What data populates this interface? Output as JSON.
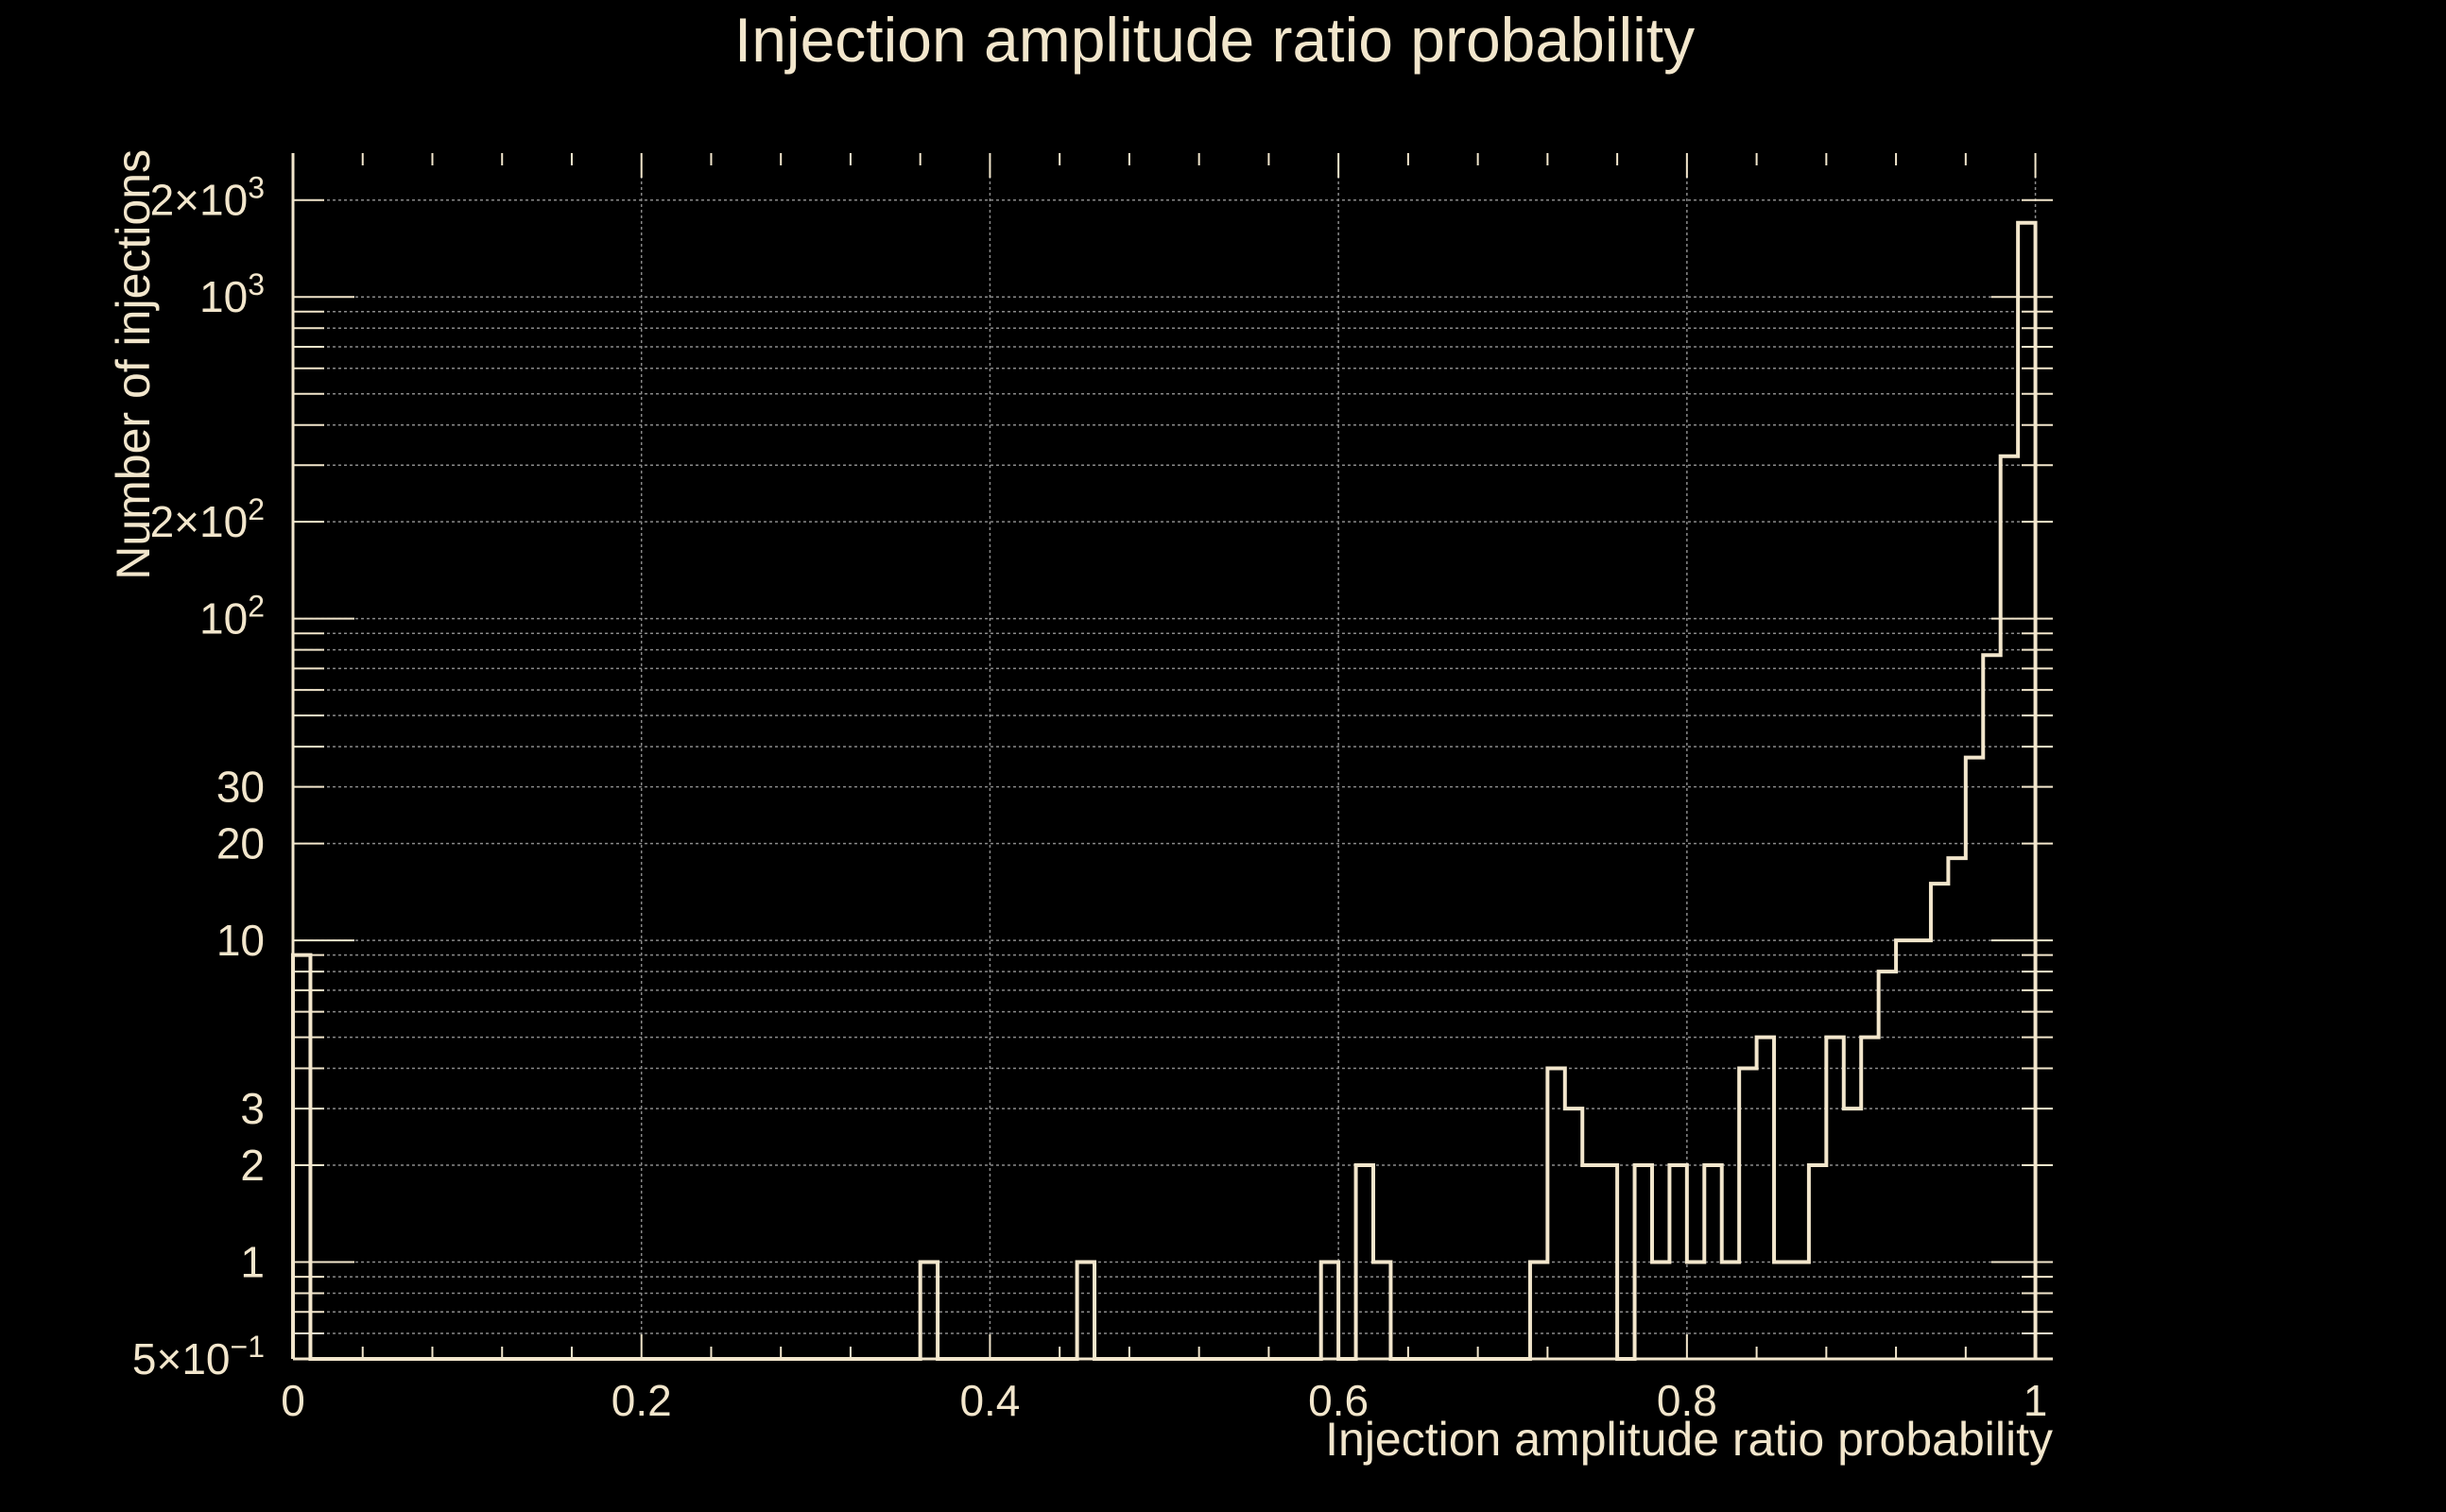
{
  "chart_data": {
    "type": "histogram",
    "title": "Injection amplitude ratio probability",
    "xlabel": "Injection amplitude ratio probability",
    "ylabel": "Number of injections",
    "xlim": [
      0,
      1.01
    ],
    "ylim": [
      0.5,
      2800
    ],
    "yscale": "log",
    "grid": true,
    "colors": {
      "background": "#000000",
      "foreground": "#f2e6cc",
      "grid": "#8a8a8a"
    },
    "x_ticks": [
      {
        "value": 0,
        "label": "0"
      },
      {
        "value": 0.2,
        "label": "0.2"
      },
      {
        "value": 0.4,
        "label": "0.4"
      },
      {
        "value": 0.6,
        "label": "0.6"
      },
      {
        "value": 0.8,
        "label": "0.8"
      },
      {
        "value": 1,
        "label": "1"
      }
    ],
    "y_ticks": [
      {
        "value": 0.5,
        "base": "5×10",
        "exp": "−1"
      },
      {
        "value": 1,
        "base": "1",
        "exp": ""
      },
      {
        "value": 2,
        "base": "2",
        "exp": ""
      },
      {
        "value": 3,
        "base": "3",
        "exp": ""
      },
      {
        "value": 10,
        "base": "10",
        "exp": ""
      },
      {
        "value": 20,
        "base": "20",
        "exp": ""
      },
      {
        "value": 30,
        "base": "30",
        "exp": ""
      },
      {
        "value": 100,
        "base": "10",
        "exp": "2"
      },
      {
        "value": 200,
        "base": "2×10",
        "exp": "2"
      },
      {
        "value": 1000,
        "base": "10",
        "exp": "3"
      },
      {
        "value": 2000,
        "base": "2×10",
        "exp": "3"
      }
    ],
    "bin_width": 0.01,
    "bins_nonzero": [
      [
        0.0,
        9
      ],
      [
        0.36,
        1
      ],
      [
        0.45,
        1
      ],
      [
        0.59,
        1
      ],
      [
        0.61,
        2
      ],
      [
        0.62,
        1
      ],
      [
        0.71,
        1
      ],
      [
        0.72,
        4
      ],
      [
        0.73,
        3
      ],
      [
        0.74,
        2
      ],
      [
        0.75,
        2
      ],
      [
        0.77,
        2
      ],
      [
        0.78,
        1
      ],
      [
        0.79,
        2
      ],
      [
        0.8,
        1
      ],
      [
        0.81,
        2
      ],
      [
        0.82,
        1
      ],
      [
        0.83,
        4
      ],
      [
        0.84,
        5
      ],
      [
        0.85,
        1
      ],
      [
        0.86,
        1
      ],
      [
        0.87,
        2
      ],
      [
        0.88,
        5
      ],
      [
        0.89,
        3
      ],
      [
        0.9,
        5
      ],
      [
        0.91,
        8
      ],
      [
        0.92,
        10
      ],
      [
        0.93,
        10
      ],
      [
        0.94,
        15
      ],
      [
        0.95,
        18
      ],
      [
        0.96,
        37
      ],
      [
        0.97,
        77
      ],
      [
        0.98,
        320
      ],
      [
        0.99,
        1700
      ]
    ]
  }
}
